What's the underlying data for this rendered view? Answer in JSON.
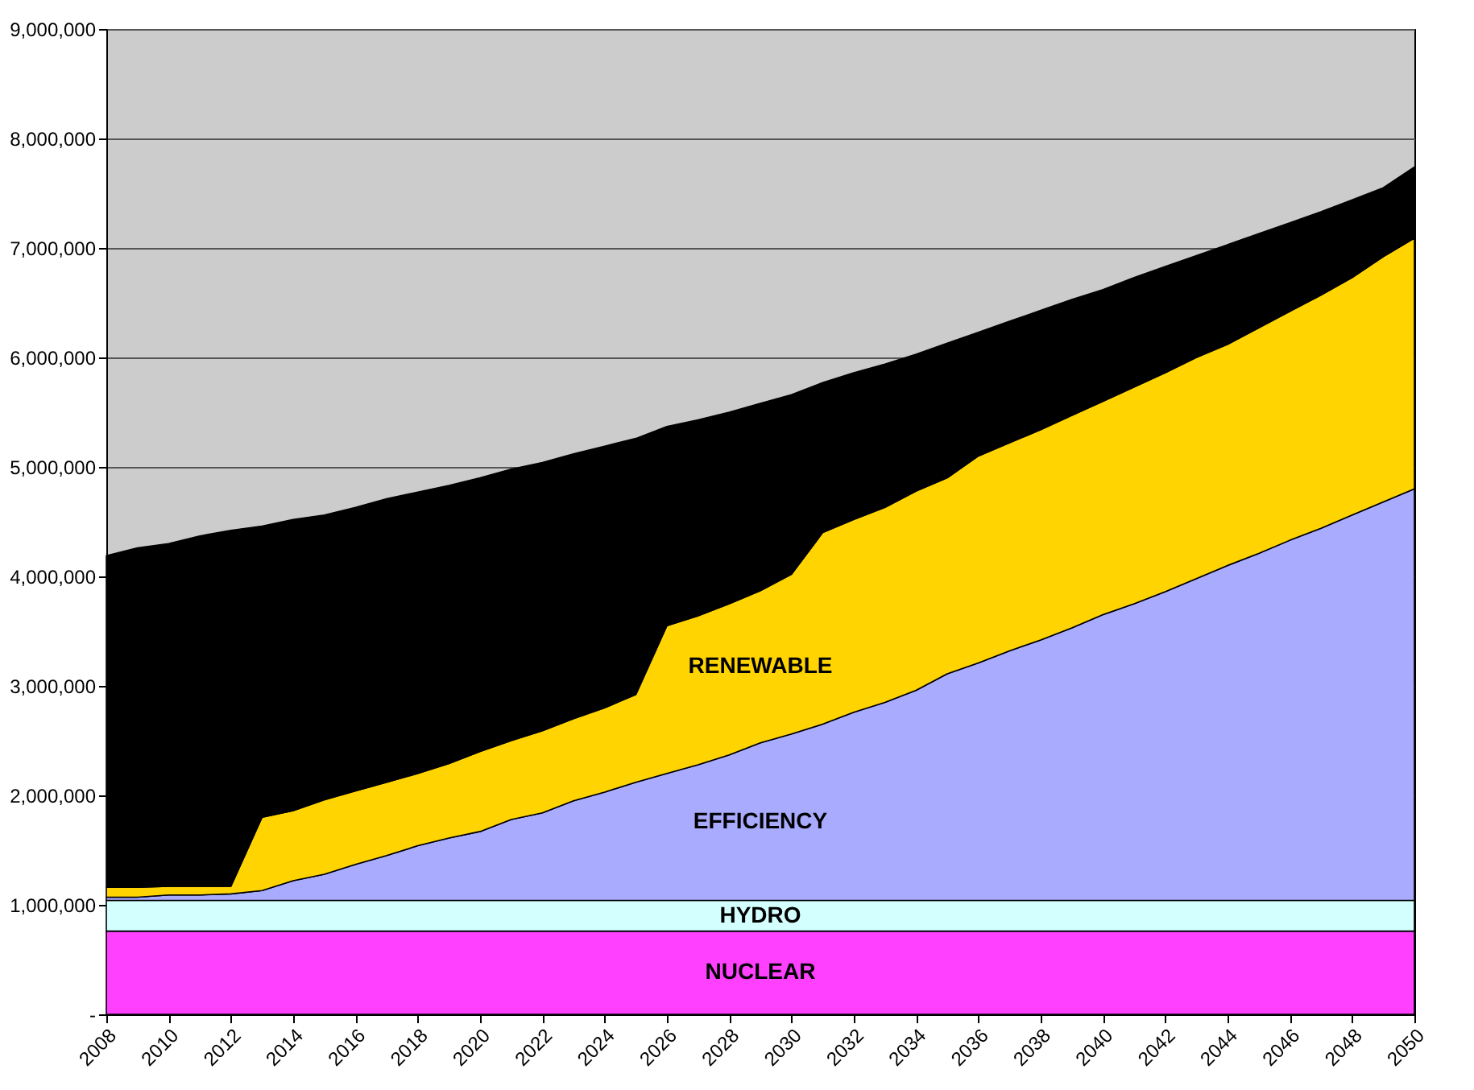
{
  "chart_data": {
    "type": "area",
    "stacked": true,
    "x": [
      2008,
      2009,
      2010,
      2011,
      2012,
      2013,
      2014,
      2015,
      2016,
      2017,
      2018,
      2019,
      2020,
      2021,
      2022,
      2023,
      2024,
      2025,
      2026,
      2027,
      2028,
      2029,
      2030,
      2031,
      2032,
      2033,
      2034,
      2035,
      2036,
      2037,
      2038,
      2039,
      2040,
      2041,
      2042,
      2043,
      2044,
      2045,
      2046,
      2047,
      2048,
      2049,
      2050
    ],
    "series": [
      {
        "name": "NUCLEAR",
        "color": "#ff40ff",
        "values": [
          760000,
          760000,
          760000,
          760000,
          760000,
          760000,
          760000,
          760000,
          760000,
          760000,
          760000,
          760000,
          760000,
          760000,
          760000,
          760000,
          760000,
          760000,
          760000,
          760000,
          760000,
          760000,
          760000,
          760000,
          760000,
          760000,
          760000,
          760000,
          760000,
          760000,
          760000,
          760000,
          760000,
          760000,
          760000,
          760000,
          760000,
          760000,
          760000,
          760000,
          760000,
          760000,
          760000
        ]
      },
      {
        "name": "HYDRO",
        "color": "#d4ffff",
        "values": [
          280000,
          280000,
          280000,
          280000,
          280000,
          280000,
          280000,
          280000,
          280000,
          280000,
          280000,
          280000,
          280000,
          280000,
          280000,
          280000,
          280000,
          280000,
          280000,
          280000,
          280000,
          280000,
          280000,
          280000,
          280000,
          280000,
          280000,
          280000,
          280000,
          280000,
          280000,
          280000,
          280000,
          280000,
          280000,
          280000,
          280000,
          280000,
          280000,
          280000,
          280000,
          280000,
          280000
        ]
      },
      {
        "name": "EFFICIENCY",
        "color": "#a9abff",
        "values": [
          30000,
          30000,
          50000,
          50000,
          60000,
          90000,
          180000,
          240000,
          330000,
          410000,
          500000,
          570000,
          630000,
          740000,
          800000,
          910000,
          990000,
          1080000,
          1160000,
          1240000,
          1330000,
          1440000,
          1520000,
          1610000,
          1720000,
          1810000,
          1920000,
          2070000,
          2170000,
          2280000,
          2380000,
          2490000,
          2610000,
          2710000,
          2820000,
          2940000,
          3060000,
          3170000,
          3290000,
          3400000,
          3520000,
          3640000,
          3760000
        ]
      },
      {
        "name": "RENEWABLE",
        "color": "#ffd400",
        "values": [
          90000,
          90000,
          80000,
          80000,
          70000,
          670000,
          640000,
          680000,
          670000,
          670000,
          660000,
          680000,
          730000,
          720000,
          750000,
          750000,
          770000,
          800000,
          1350000,
          1360000,
          1380000,
          1390000,
          1460000,
          1750000,
          1760000,
          1780000,
          1820000,
          1790000,
          1890000,
          1900000,
          1920000,
          1940000,
          1950000,
          1980000,
          2000000,
          2020000,
          2020000,
          2060000,
          2090000,
          2130000,
          2170000,
          2240000,
          2290000
        ]
      },
      {
        "color": "#000000",
        "values": [
          3030000,
          3100000,
          3130000,
          3200000,
          3250000,
          2660000,
          2660000,
          2600000,
          2590000,
          2590000,
          2570000,
          2540000,
          2500000,
          2480000,
          2450000,
          2420000,
          2390000,
          2340000,
          1820000,
          1790000,
          1750000,
          1710000,
          1640000,
          1370000,
          1340000,
          1310000,
          1250000,
          1230000,
          1130000,
          1110000,
          1090000,
          1060000,
          1020000,
          1000000,
          970000,
          930000,
          910000,
          860000,
          810000,
          760000,
          710000,
          630000,
          650000
        ]
      }
    ],
    "xlim": [
      2008,
      2050
    ],
    "xticks": [
      2008,
      2010,
      2012,
      2014,
      2016,
      2018,
      2020,
      2022,
      2024,
      2026,
      2028,
      2030,
      2032,
      2034,
      2036,
      2038,
      2040,
      2042,
      2044,
      2046,
      2048,
      2050
    ],
    "ylim": [
      0,
      9000000
    ],
    "yticks": [
      {
        "value": 0,
        "label": "-"
      },
      {
        "value": 1000000,
        "label": "1,000,000"
      },
      {
        "value": 2000000,
        "label": "2,000,000"
      },
      {
        "value": 3000000,
        "label": "3,000,000"
      },
      {
        "value": 4000000,
        "label": "4,000,000"
      },
      {
        "value": 5000000,
        "label": "5,000,000"
      },
      {
        "value": 6000000,
        "label": "6,000,000"
      },
      {
        "value": 7000000,
        "label": "7,000,000"
      },
      {
        "value": 8000000,
        "label": "8,000,000"
      },
      {
        "value": 9000000,
        "label": "9,000,000"
      }
    ],
    "grid": "y"
  }
}
